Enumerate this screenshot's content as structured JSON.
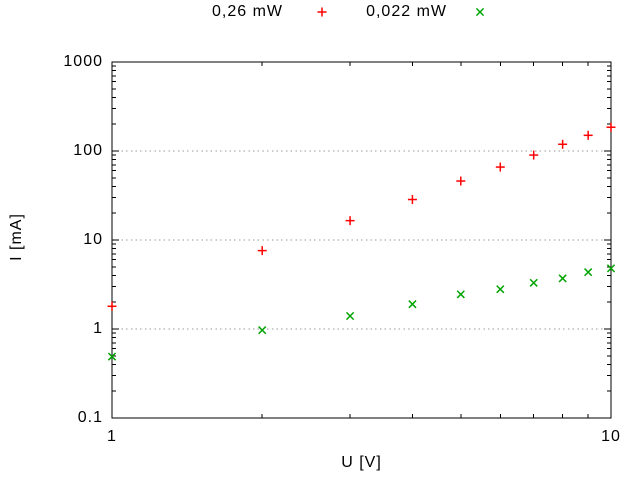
{
  "chart_data": {
    "type": "scatter",
    "title": "",
    "xlabel": "U [V]",
    "ylabel": "I [mA]",
    "x_scale": "log",
    "y_scale": "log",
    "xlim": [
      1,
      10
    ],
    "ylim": [
      0.1,
      1000
    ],
    "x_tick_labels": [
      "1",
      "10"
    ],
    "x_tick_values": [
      1,
      10
    ],
    "x_minor_ticks": [
      2,
      3,
      4,
      5,
      6,
      7,
      8,
      9
    ],
    "y_tick_labels": [
      "0.1",
      "1",
      "10",
      "100",
      "1000"
    ],
    "y_tick_values": [
      0.1,
      1,
      10,
      100,
      1000
    ],
    "grid": "horizontal dotted gridlines at 1, 10, 100",
    "grid_color": "#9a9a9a",
    "axis_color": "#000000",
    "x": [
      1,
      2,
      3,
      4,
      5,
      6,
      7,
      8,
      9,
      10
    ],
    "series": [
      {
        "name": "0,26 mW",
        "marker": "plus",
        "color": "#ff0000",
        "values": [
          1.8,
          7.6,
          16.5,
          28.5,
          46,
          66,
          90,
          119,
          150,
          185
        ]
      },
      {
        "name": "0,022 mW",
        "marker": "cross",
        "color": "#00a400",
        "values": [
          0.49,
          0.97,
          1.4,
          1.9,
          2.45,
          2.8,
          3.3,
          3.7,
          4.35,
          4.8
        ]
      }
    ],
    "legend_position": "top-center, outside plot"
  }
}
